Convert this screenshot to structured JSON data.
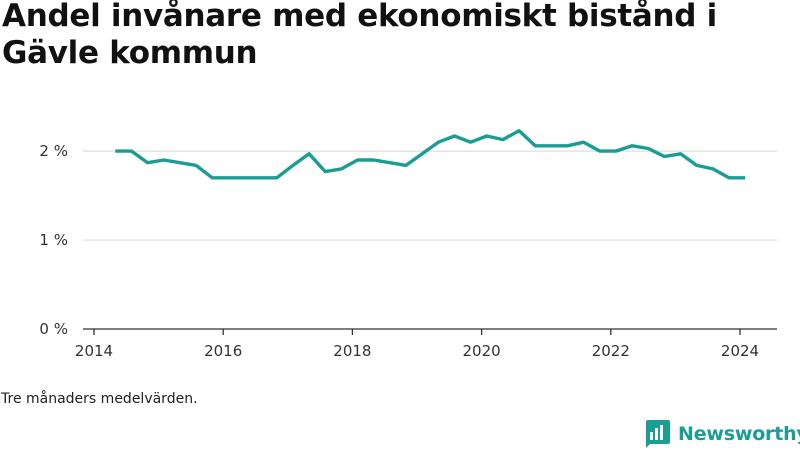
{
  "chart_data": {
    "type": "line",
    "title": "Andel invånare med ekonomiskt bistånd i Gävle kommun",
    "note": "Tre månaders medelvärden.",
    "y_ticks": [
      {
        "value": 0,
        "label": "0 %"
      },
      {
        "value": 1,
        "label": "1 %"
      },
      {
        "value": 2,
        "label": "2 %"
      }
    ],
    "x_ticks": [
      "2014",
      "2016",
      "2018",
      "2020",
      "2022",
      "2024"
    ],
    "xlim": [
      2014,
      2024.7
    ],
    "ylim": [
      0,
      2.35
    ],
    "grid": true,
    "line_color": "#1a9e93",
    "series": [
      {
        "x": [
          2014.33,
          2014.58,
          2014.83,
          2015.08,
          2015.33,
          2015.58,
          2015.83,
          2016.08,
          2016.33,
          2016.58,
          2016.83,
          2017.08,
          2017.33,
          2017.58,
          2017.83,
          2018.08,
          2018.33,
          2018.58,
          2018.83,
          2019.08,
          2019.33,
          2019.58,
          2019.83,
          2020.08,
          2020.33,
          2020.58,
          2020.83,
          2021.08,
          2021.33,
          2021.58,
          2021.83,
          2022.08,
          2022.33,
          2022.58,
          2022.83,
          2023.08,
          2023.33,
          2023.58,
          2023.83,
          2024.08
        ],
        "y": [
          2.0,
          2.0,
          1.87,
          1.9,
          1.87,
          1.84,
          1.7,
          1.7,
          1.7,
          1.7,
          1.7,
          1.84,
          1.97,
          1.77,
          1.8,
          1.9,
          1.9,
          1.87,
          1.84,
          1.97,
          2.1,
          2.17,
          2.1,
          2.17,
          2.13,
          2.23,
          2.06,
          2.06,
          2.06,
          2.1,
          2.0,
          2.0,
          2.06,
          2.03,
          1.94,
          1.97,
          1.84,
          1.8,
          1.7,
          1.7
        ]
      }
    ]
  },
  "brand": {
    "name": "Newsworthy",
    "color": "#1a9e93",
    "icon": "newsworthy-logo-icon"
  }
}
